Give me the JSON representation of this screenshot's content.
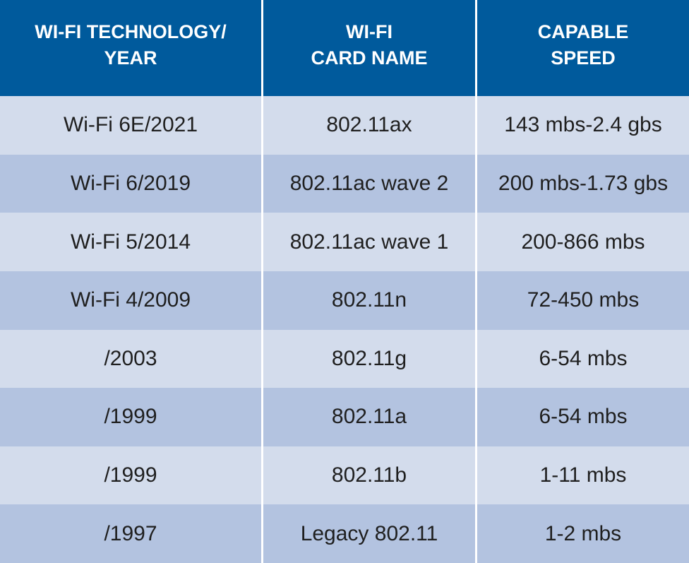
{
  "table": {
    "headers": [
      {
        "line1": "WI-FI TECHNOLOGY/",
        "line2": "YEAR"
      },
      {
        "line1": "WI-FI",
        "line2": "CARD NAME"
      },
      {
        "line1": "CAPABLE",
        "line2": "SPEED"
      }
    ],
    "rows": [
      {
        "technology": "Wi-Fi 6E/2021",
        "card": "802.11ax",
        "speed": "143 mbs-2.4 gbs"
      },
      {
        "technology": "Wi-Fi 6/2019",
        "card": "802.11ac wave 2",
        "speed": "200 mbs-1.73 gbs"
      },
      {
        "technology": "Wi-Fi 5/2014",
        "card": "802.11ac wave 1",
        "speed": "200-866 mbs"
      },
      {
        "technology": "Wi-Fi 4/2009",
        "card": "802.11n",
        "speed": "72-450 mbs"
      },
      {
        "technology": "/2003",
        "card": "802.11g",
        "speed": "6-54 mbs"
      },
      {
        "technology": "/1999",
        "card": "802.11a",
        "speed": "6-54 mbs"
      },
      {
        "technology": "/1999",
        "card": "802.11b",
        "speed": "1-11 mbs"
      },
      {
        "technology": "/1997",
        "card": "Legacy 802.11",
        "speed": "1-2 mbs"
      }
    ]
  },
  "colors": {
    "header_bg": "#005a9c",
    "row_light": "#d3dcec",
    "row_dark": "#b3c3e0"
  }
}
